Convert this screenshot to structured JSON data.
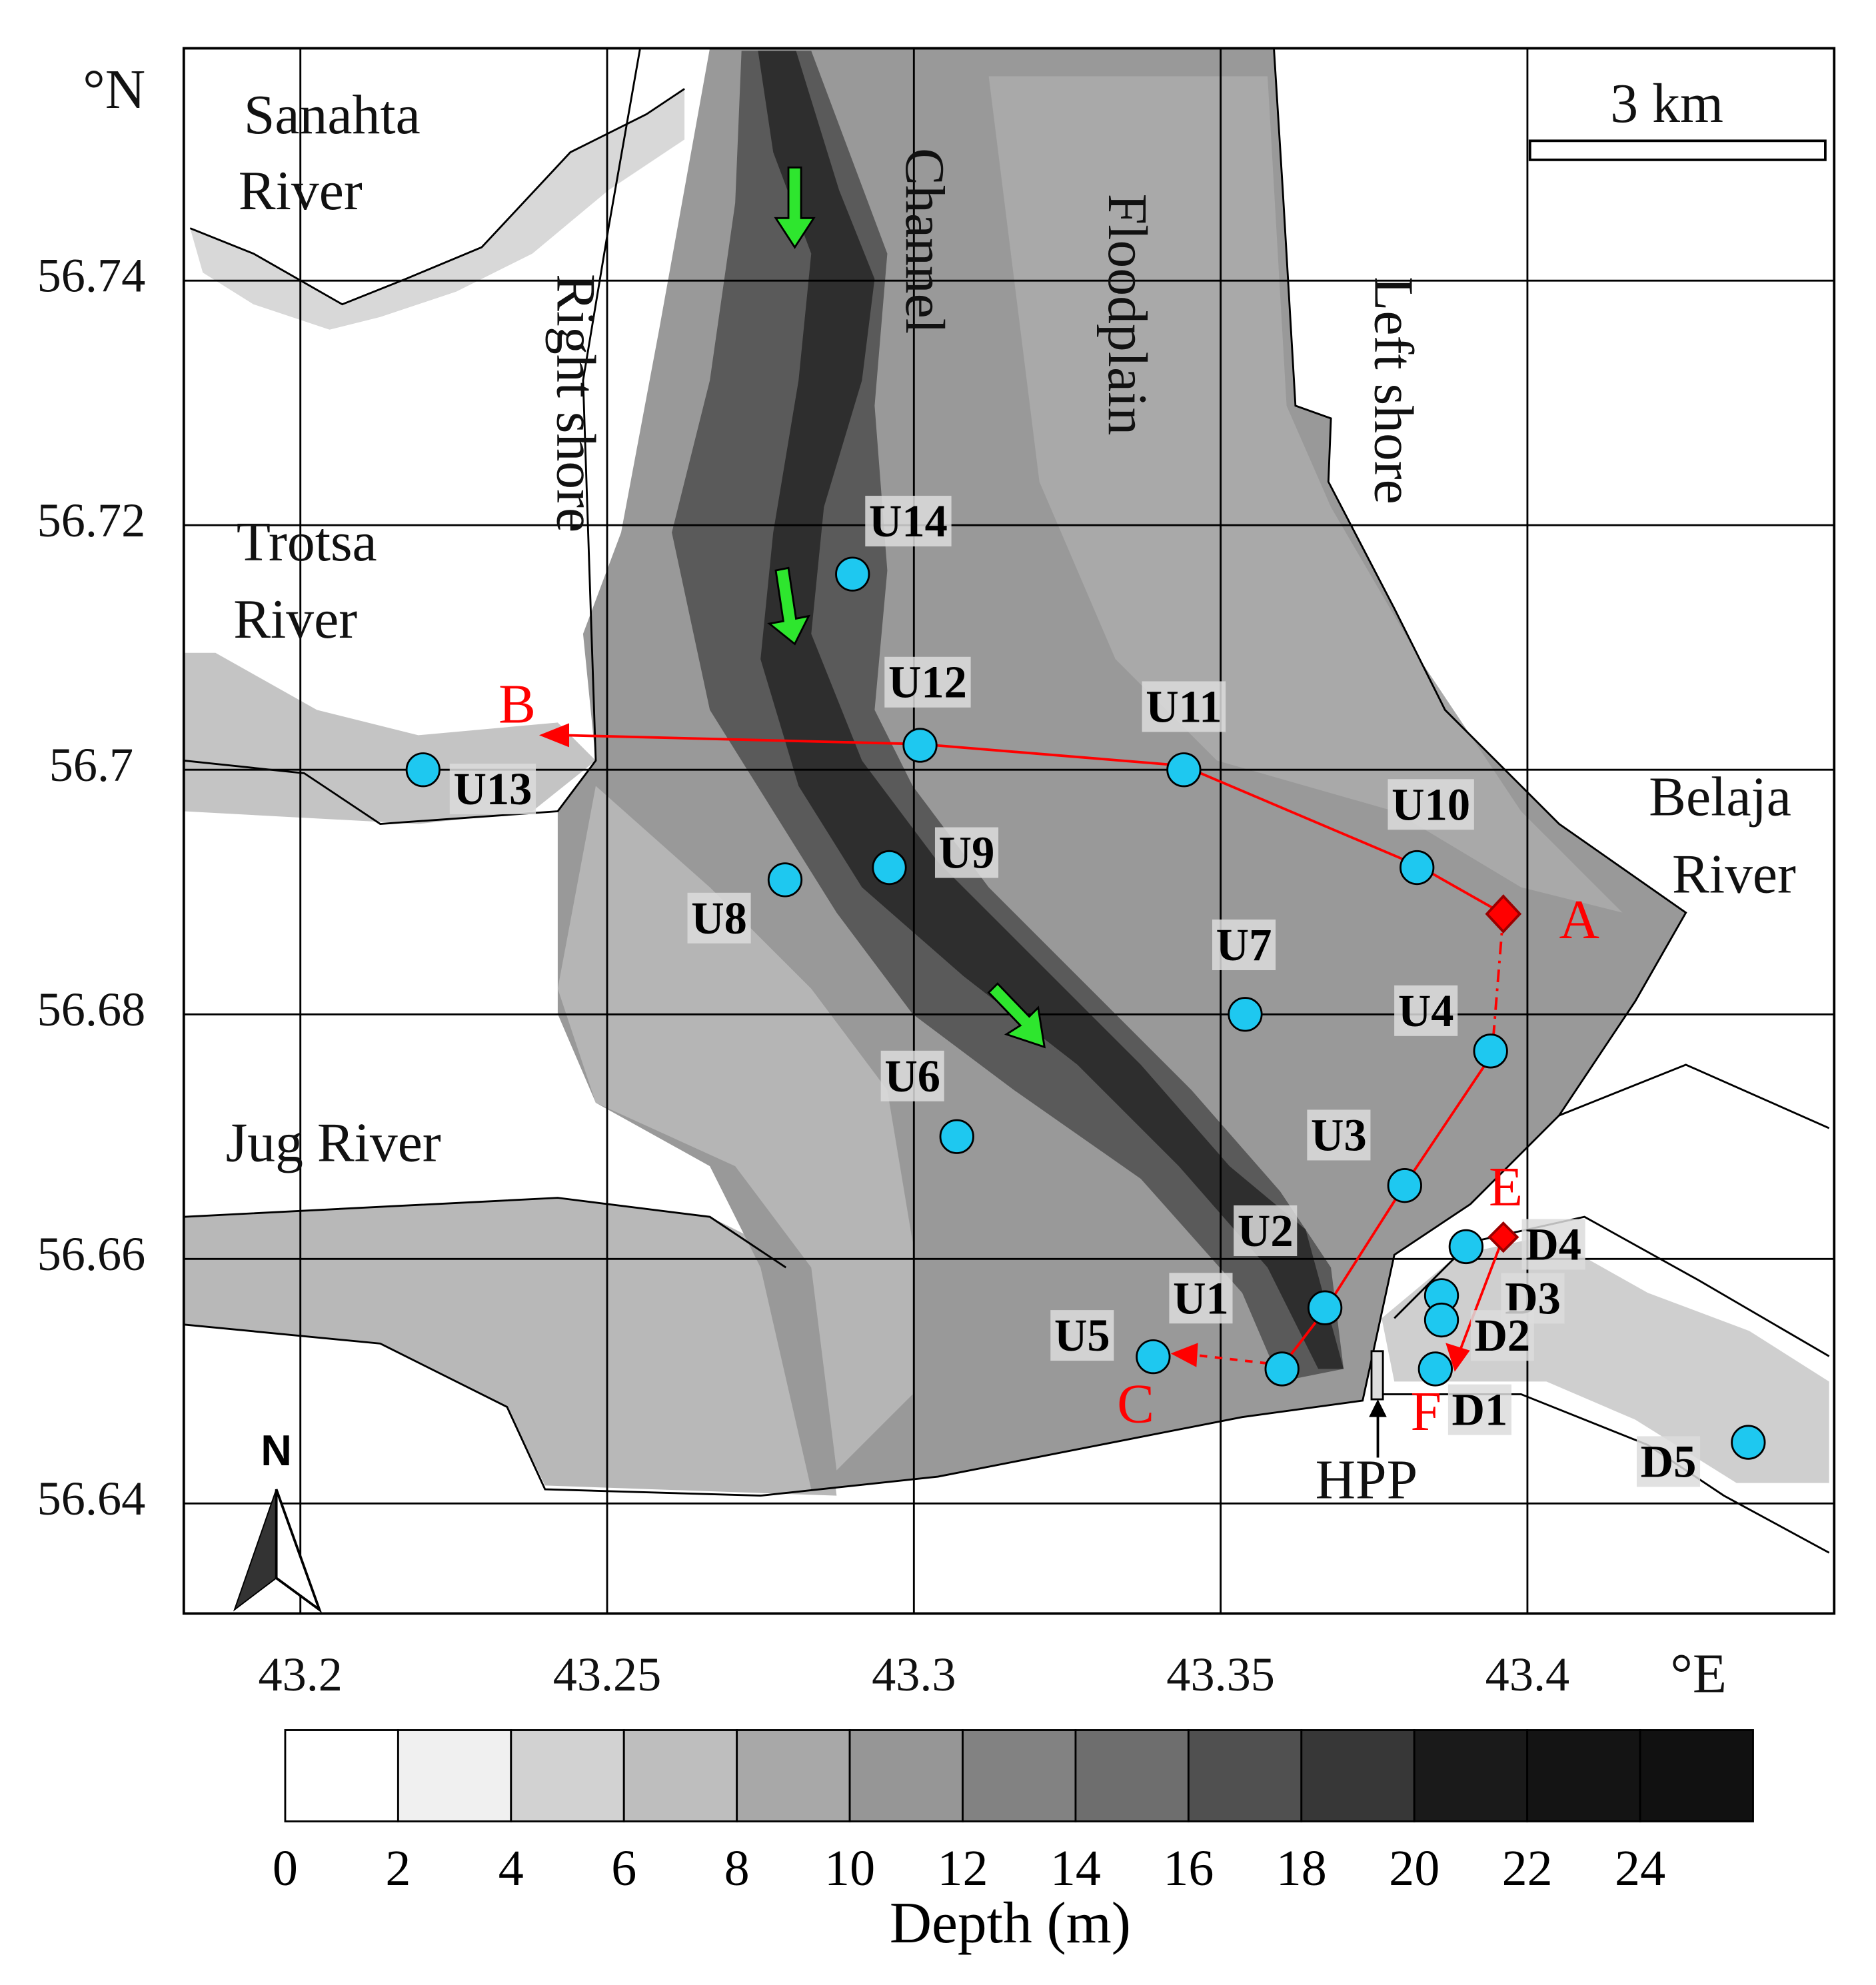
{
  "map": {
    "xlim": [
      43.181,
      43.45
    ],
    "ylim": [
      56.631,
      56.759
    ],
    "xticks": [
      43.2,
      43.25,
      43.3,
      43.35,
      43.4
    ],
    "yticks": [
      56.64,
      56.66,
      56.68,
      56.7,
      56.72,
      56.74
    ],
    "x_unit": "°E",
    "y_unit": "°N",
    "stations": [
      {
        "name": "U14",
        "lon": 43.29,
        "lat": 56.716
      },
      {
        "name": "U12",
        "lon": 43.301,
        "lat": 56.702
      },
      {
        "name": "U11",
        "lon": 43.344,
        "lat": 56.7
      },
      {
        "name": "U13",
        "lon": 43.22,
        "lat": 56.7
      },
      {
        "name": "U10",
        "lon": 43.382,
        "lat": 56.692
      },
      {
        "name": "U9",
        "lon": 43.296,
        "lat": 56.692
      },
      {
        "name": "U8",
        "lon": 43.279,
        "lat": 56.691
      },
      {
        "name": "U7",
        "lon": 43.354,
        "lat": 56.68
      },
      {
        "name": "U4",
        "lon": 43.394,
        "lat": 56.677
      },
      {
        "name": "U6",
        "lon": 43.307,
        "lat": 56.67
      },
      {
        "name": "U3",
        "lon": 43.38,
        "lat": 56.666
      },
      {
        "name": "U2",
        "lon": 43.367,
        "lat": 56.656
      },
      {
        "name": "U1",
        "lon": 43.36,
        "lat": 56.651
      },
      {
        "name": "U5",
        "lon": 43.339,
        "lat": 56.652
      },
      {
        "name": "D4",
        "lon": 43.39,
        "lat": 56.661
      },
      {
        "name": "D3",
        "lon": 43.386,
        "lat": 56.657
      },
      {
        "name": "D2",
        "lon": 43.386,
        "lat": 56.655
      },
      {
        "name": "D1",
        "lon": 43.385,
        "lat": 56.651
      },
      {
        "name": "D5",
        "lon": 43.436,
        "lat": 56.645
      }
    ],
    "route_labels": {
      "a": "A",
      "b": "B",
      "c": "C",
      "e": "E",
      "f": "F"
    },
    "places": {
      "sanahta": [
        "Sanahta",
        "River"
      ],
      "trotsa": [
        "Trotsa",
        "River"
      ],
      "jug": "Jug River",
      "belaja": [
        "Belaja",
        "River"
      ],
      "right_shore": "Right shore",
      "channel": "Channel",
      "floodplain": "Floodplain",
      "left_shore": "Left shore"
    },
    "scale_bar": "3 km",
    "north": "N",
    "hpp": "HPP"
  },
  "colorbar": {
    "lim": [
      0,
      26
    ],
    "ticks": [
      0,
      2,
      4,
      6,
      8,
      10,
      12,
      14,
      16,
      18,
      20,
      22,
      24
    ],
    "title": "Depth (m)"
  }
}
